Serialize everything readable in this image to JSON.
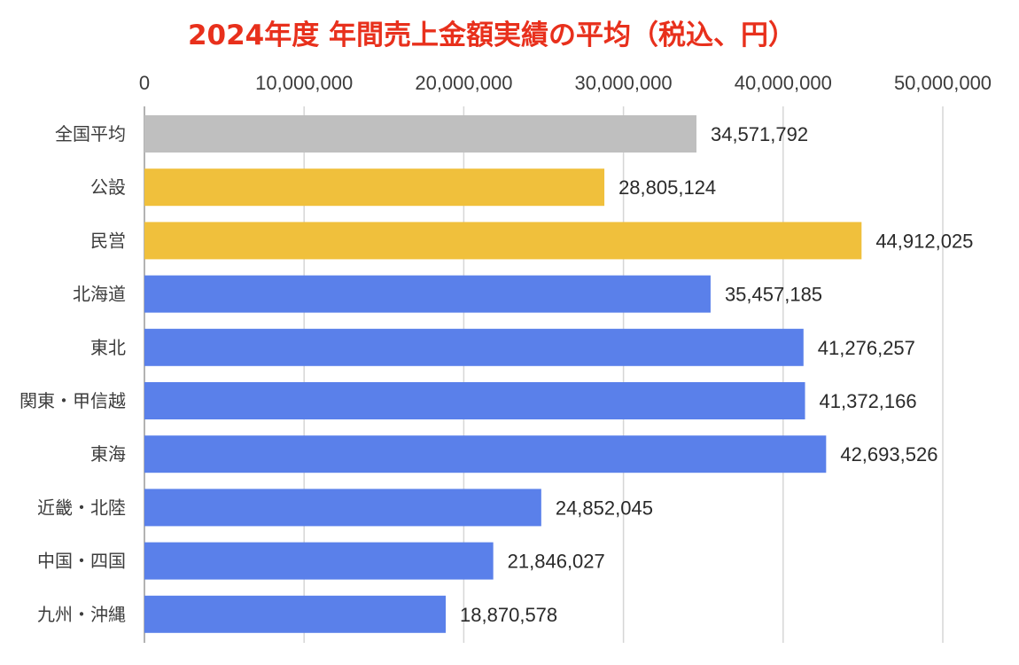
{
  "chart_data": {
    "type": "bar",
    "orientation": "horizontal",
    "title": "2024年度 年間売上金額実績の平均（税込、円）",
    "xlabel": "",
    "ylabel": "",
    "xlim": [
      0,
      50000000
    ],
    "x_ticks": [
      0,
      10000000,
      20000000,
      30000000,
      40000000,
      50000000
    ],
    "x_tick_labels": [
      "0",
      "10,000,000",
      "20,000,000",
      "30,000,000",
      "40,000,000",
      "50,000,000"
    ],
    "x_axis_position": "top",
    "grid": true,
    "legend": "none",
    "categories": [
      "全国平均",
      "公設",
      "民営",
      "北海道",
      "東北",
      "関東・甲信越",
      "東海",
      "近畿・北陸",
      "中国・四国",
      "九州・沖縄"
    ],
    "values": [
      34571792,
      28805124,
      44912025,
      35457185,
      41276257,
      41372166,
      42693526,
      24852045,
      21846027,
      18870578
    ],
    "data_labels": [
      "34,571,792",
      "28,805,124",
      "44,912,025",
      "35,457,185",
      "41,276,257",
      "41,372,166",
      "42,693,526",
      "24,852,045",
      "21,846,027",
      "18,870,578"
    ],
    "bar_colors": [
      "#bfbfbf",
      "#f0c03c",
      "#f0c03c",
      "#5a80ea",
      "#5a80ea",
      "#5a80ea",
      "#5a80ea",
      "#5a80ea",
      "#5a80ea",
      "#5a80ea"
    ]
  },
  "colors": {
    "title": "#e8301c",
    "gridline": "#d6d6d6",
    "text": "#3c3c3c"
  }
}
